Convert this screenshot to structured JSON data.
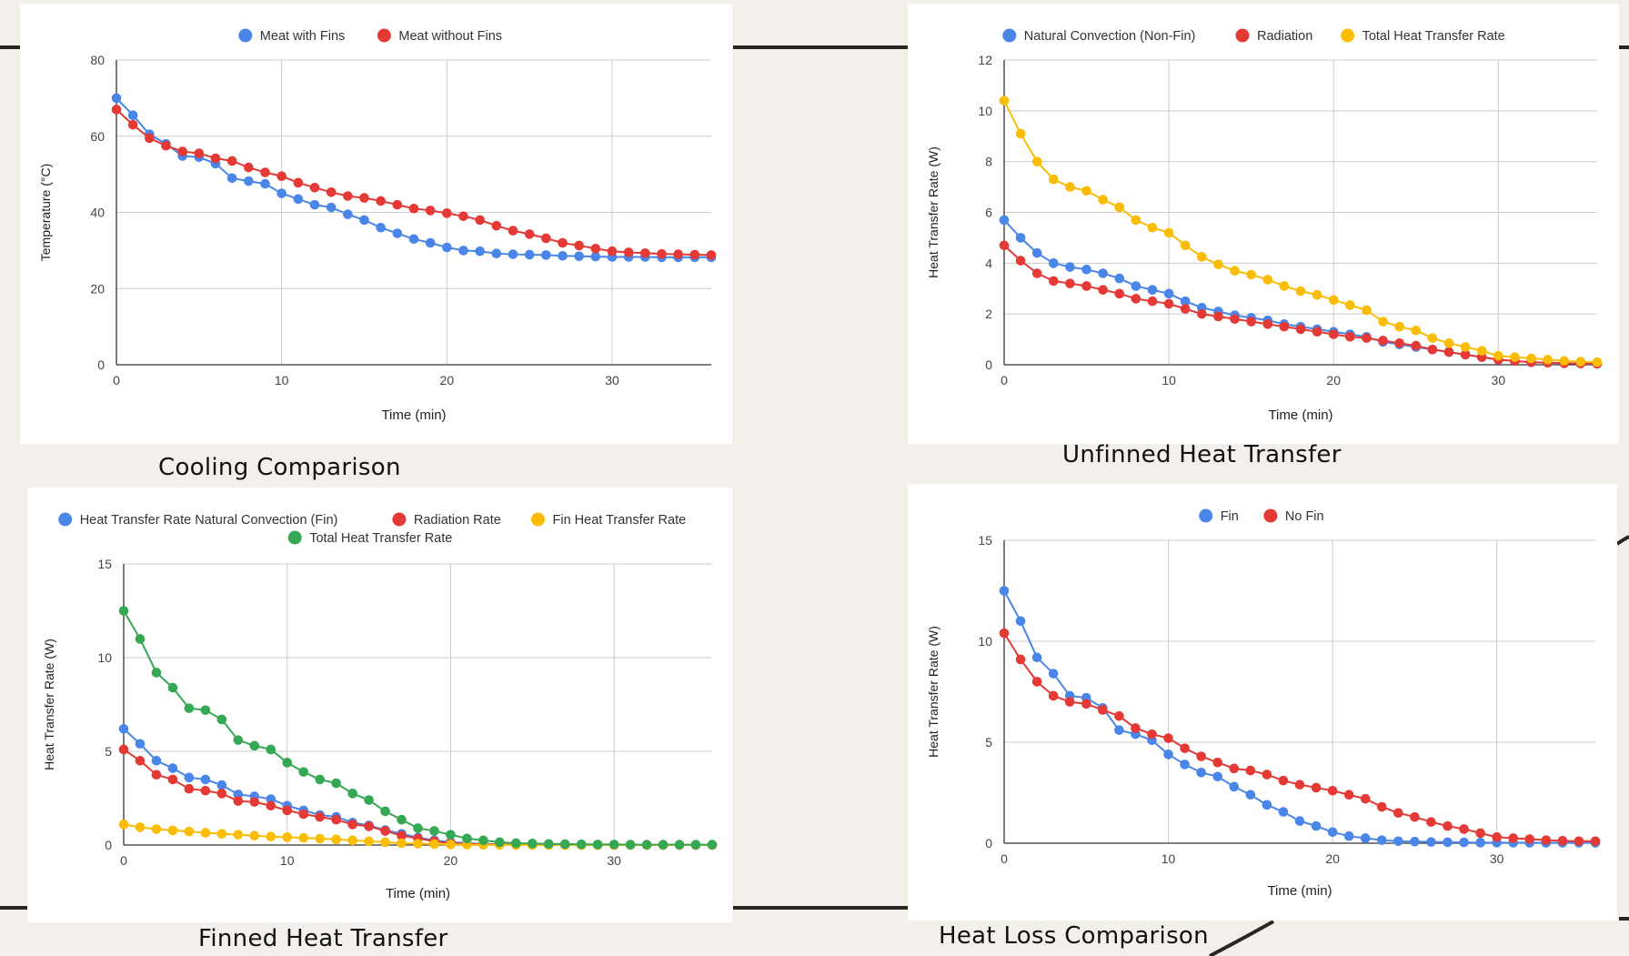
{
  "colors": {
    "blue": "#4a86e8",
    "red": "#e53935",
    "yellow": "#fbbc04",
    "green": "#34a853",
    "grid": "#cccccc",
    "axis": "#333333"
  },
  "chart_data": [
    {
      "type": "line",
      "caption": "Cooling Comparison",
      "xlabel": "Time (min)",
      "ylabel": "Temperature (°C)",
      "xlim": [
        0,
        36
      ],
      "ylim": [
        0,
        80
      ],
      "xticks": [
        0,
        10,
        20,
        30
      ],
      "yticks": [
        0,
        20,
        40,
        60,
        80
      ],
      "legend": "top",
      "grid": true,
      "x": [
        0,
        1,
        2,
        3,
        4,
        5,
        6,
        7,
        8,
        9,
        10,
        11,
        12,
        13,
        14,
        15,
        16,
        17,
        18,
        19,
        20,
        21,
        22,
        23,
        24,
        25,
        26,
        27,
        28,
        29,
        30,
        31,
        32,
        33,
        34,
        35,
        36
      ],
      "series": [
        {
          "name": "Meat with Fins",
          "color": "#4a86e8",
          "values": [
            70,
            65.5,
            60.5,
            58,
            54.8,
            54.5,
            52.8,
            49,
            48.2,
            47.5,
            45,
            43.5,
            42,
            41.3,
            39.5,
            38,
            36,
            34.5,
            33,
            32,
            30.8,
            30,
            29.8,
            29.2,
            29,
            28.9,
            28.8,
            28.6,
            28.5,
            28.4,
            28.3,
            28.3,
            28.3,
            28.2,
            28.2,
            28.2,
            28.2
          ]
        },
        {
          "name": "Meat without Fins",
          "color": "#e53935",
          "values": [
            67,
            63,
            59.5,
            57.5,
            56,
            55.5,
            54.2,
            53.5,
            51.8,
            50.5,
            49.5,
            47.8,
            46.5,
            45.3,
            44.3,
            43.8,
            43,
            42,
            41,
            40.5,
            39.8,
            39,
            38,
            36.5,
            35.2,
            34.3,
            33.2,
            32,
            31.3,
            30.5,
            29.8,
            29.5,
            29.3,
            29.1,
            29,
            28.9,
            28.8
          ]
        }
      ]
    },
    {
      "type": "line",
      "caption": "Unfinned Heat Transfer",
      "xlabel": "Time (min)",
      "ylabel": "Heat Transfer Rate (W)",
      "xlim": [
        0,
        36
      ],
      "ylim": [
        0,
        12
      ],
      "xticks": [
        0,
        10,
        20,
        30
      ],
      "yticks": [
        0,
        2,
        4,
        6,
        8,
        10,
        12
      ],
      "legend": "top",
      "grid": true,
      "x": [
        0,
        1,
        2,
        3,
        4,
        5,
        6,
        7,
        8,
        9,
        10,
        11,
        12,
        13,
        14,
        15,
        16,
        17,
        18,
        19,
        20,
        21,
        22,
        23,
        24,
        25,
        26,
        27,
        28,
        29,
        30,
        31,
        32,
        33,
        34,
        35,
        36
      ],
      "series": [
        {
          "name": "Natural Convection (Non-Fin)",
          "color": "#4a86e8",
          "values": [
            5.7,
            5,
            4.4,
            4,
            3.85,
            3.75,
            3.6,
            3.4,
            3.1,
            2.95,
            2.8,
            2.5,
            2.25,
            2.1,
            1.95,
            1.85,
            1.75,
            1.6,
            1.5,
            1.4,
            1.3,
            1.2,
            1.1,
            0.9,
            0.8,
            0.7,
            0.6,
            0.5,
            0.4,
            0.3,
            0.2,
            0.15,
            0.1,
            0.08,
            0.06,
            0.05,
            0.04
          ]
        },
        {
          "name": "Radiation",
          "color": "#e53935",
          "values": [
            4.7,
            4.1,
            3.6,
            3.3,
            3.2,
            3.1,
            2.95,
            2.8,
            2.6,
            2.5,
            2.4,
            2.2,
            2,
            1.9,
            1.8,
            1.7,
            1.6,
            1.5,
            1.4,
            1.3,
            1.2,
            1.1,
            1.05,
            0.95,
            0.85,
            0.75,
            0.6,
            0.5,
            0.4,
            0.3,
            0.2,
            0.15,
            0.1,
            0.08,
            0.06,
            0.05,
            0.04
          ]
        },
        {
          "name": "Total Heat Transfer Rate",
          "color": "#fbbc04",
          "values": [
            10.4,
            9.1,
            8,
            7.3,
            7,
            6.85,
            6.5,
            6.2,
            5.7,
            5.4,
            5.2,
            4.7,
            4.25,
            3.95,
            3.7,
            3.55,
            3.35,
            3.1,
            2.9,
            2.75,
            2.55,
            2.35,
            2.15,
            1.7,
            1.5,
            1.35,
            1.05,
            0.85,
            0.7,
            0.55,
            0.35,
            0.3,
            0.25,
            0.2,
            0.15,
            0.12,
            0.1
          ]
        }
      ]
    },
    {
      "type": "line",
      "caption": "Finned Heat Transfer",
      "xlabel": "Time (min)",
      "ylabel": "Heat Transfer Rate (W)",
      "xlim": [
        0,
        36
      ],
      "ylim": [
        0,
        15
      ],
      "xticks": [
        0,
        10,
        20,
        30
      ],
      "yticks": [
        0,
        5,
        10,
        15
      ],
      "legend": "top",
      "grid": true,
      "x": [
        0,
        1,
        2,
        3,
        4,
        5,
        6,
        7,
        8,
        9,
        10,
        11,
        12,
        13,
        14,
        15,
        16,
        17,
        18,
        19,
        20,
        21,
        22,
        23,
        24,
        25,
        26,
        27,
        28,
        29,
        30,
        31,
        32,
        33,
        34,
        35,
        36
      ],
      "series": [
        {
          "name": "Heat Transfer Rate Natural Convection (Fin)",
          "color": "#4a86e8",
          "values": [
            6.2,
            5.4,
            4.5,
            4.1,
            3.6,
            3.5,
            3.2,
            2.7,
            2.6,
            2.45,
            2.1,
            1.85,
            1.6,
            1.5,
            1.2,
            1.05,
            0.8,
            0.6,
            0.4,
            0.25,
            0.15,
            0.1,
            0.06,
            0.04,
            0.03,
            0.02,
            0.02,
            0.01,
            0.01,
            0.01,
            0.01,
            0.01,
            0,
            0,
            0,
            0,
            0
          ]
        },
        {
          "name": "Radiation Rate",
          "color": "#e53935",
          "values": [
            5.1,
            4.5,
            3.75,
            3.5,
            3,
            2.9,
            2.75,
            2.35,
            2.3,
            2.1,
            1.85,
            1.65,
            1.5,
            1.35,
            1.1,
            1,
            0.75,
            0.5,
            0.35,
            0.2,
            0.1,
            0.06,
            0.04,
            0.03,
            0.02,
            0.01,
            0.01,
            0.01,
            0,
            0,
            0,
            0,
            0,
            0,
            0,
            0,
            0
          ]
        },
        {
          "name": "Fin Heat Transfer Rate",
          "color": "#fbbc04",
          "values": [
            1.1,
            0.95,
            0.85,
            0.78,
            0.72,
            0.65,
            0.6,
            0.55,
            0.5,
            0.45,
            0.42,
            0.38,
            0.34,
            0.3,
            0.25,
            0.2,
            0.15,
            0.1,
            0.07,
            0.05,
            0.03,
            0.02,
            0.01,
            0.01,
            0,
            0,
            0,
            0,
            0,
            0,
            0,
            0,
            0,
            0,
            0,
            0,
            0
          ]
        },
        {
          "name": "Total Heat Transfer Rate",
          "color": "#34a853",
          "values": [
            12.5,
            11,
            9.2,
            8.4,
            7.3,
            7.2,
            6.7,
            5.6,
            5.3,
            5.1,
            4.4,
            3.9,
            3.5,
            3.3,
            2.75,
            2.4,
            1.8,
            1.35,
            0.9,
            0.75,
            0.55,
            0.35,
            0.25,
            0.15,
            0.1,
            0.08,
            0.06,
            0.05,
            0.04,
            0.03,
            0.03,
            0.02,
            0.02,
            0.02,
            0.02,
            0.02,
            0.02
          ]
        }
      ]
    },
    {
      "type": "line",
      "caption": "Heat Loss Comparison",
      "xlabel": "Time (min)",
      "ylabel": "Heat Transfer Rate (W)",
      "xlim": [
        0,
        36
      ],
      "ylim": [
        0,
        15
      ],
      "xticks": [
        0,
        10,
        20,
        30
      ],
      "yticks": [
        0,
        5,
        10,
        15
      ],
      "legend": "top",
      "grid": true,
      "x": [
        0,
        1,
        2,
        3,
        4,
        5,
        6,
        7,
        8,
        9,
        10,
        11,
        12,
        13,
        14,
        15,
        16,
        17,
        18,
        19,
        20,
        21,
        22,
        23,
        24,
        25,
        26,
        27,
        28,
        29,
        30,
        31,
        32,
        33,
        34,
        35,
        36
      ],
      "series": [
        {
          "name": "Fin",
          "color": "#4a86e8",
          "values": [
            12.5,
            11,
            9.2,
            8.4,
            7.3,
            7.2,
            6.7,
            5.6,
            5.4,
            5.1,
            4.4,
            3.9,
            3.5,
            3.3,
            2.8,
            2.4,
            1.9,
            1.55,
            1.1,
            0.85,
            0.55,
            0.35,
            0.25,
            0.15,
            0.1,
            0.08,
            0.06,
            0.05,
            0.04,
            0.03,
            0.03,
            0.02,
            0.02,
            0.02,
            0.02,
            0.02,
            0.02
          ]
        },
        {
          "name": "No Fin",
          "color": "#e53935",
          "values": [
            10.4,
            9.1,
            8,
            7.3,
            7,
            6.9,
            6.6,
            6.3,
            5.7,
            5.4,
            5.2,
            4.7,
            4.3,
            4,
            3.7,
            3.6,
            3.4,
            3.1,
            2.9,
            2.75,
            2.6,
            2.4,
            2.2,
            1.8,
            1.5,
            1.3,
            1.05,
            0.85,
            0.7,
            0.5,
            0.3,
            0.25,
            0.2,
            0.15,
            0.12,
            0.1,
            0.1
          ]
        }
      ]
    }
  ]
}
